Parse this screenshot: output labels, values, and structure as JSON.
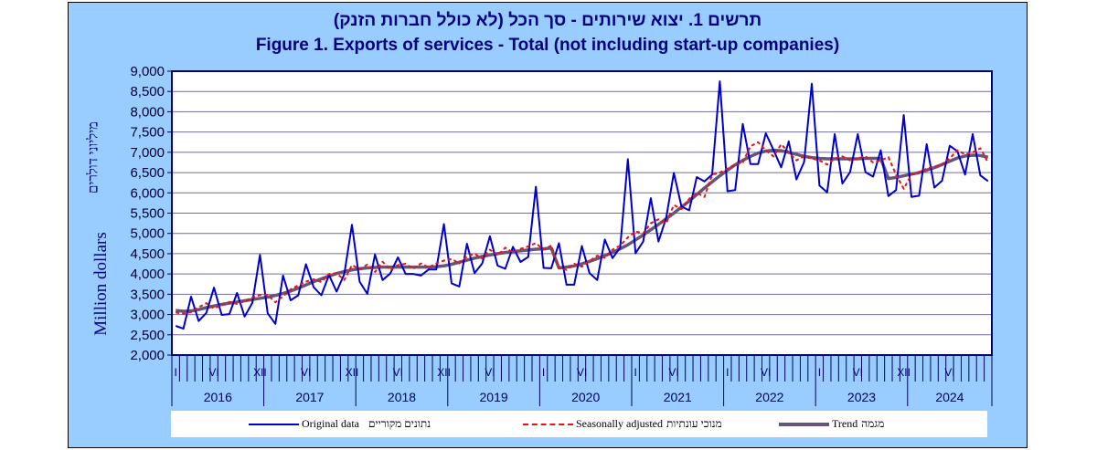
{
  "chart_data": {
    "type": "line",
    "title_he": "תרשים 1. יצוא שירותים - סך הכל (לא כולל חברות הזנק)",
    "title": "Figure 1. Exports of services - Total (not including start-up companies)",
    "ylabel_he": "מיליוני דולרים",
    "ylabel": "Million dollars",
    "ylim": [
      2000,
      9000
    ],
    "yticks": [
      "2,000",
      "2,500",
      "3,000",
      "3,500",
      "4,000",
      "4,500",
      "5,000",
      "5,500",
      "6,000",
      "6,500",
      "7,000",
      "7,500",
      "8,000",
      "8,500",
      "9,000"
    ],
    "grid": true,
    "x_start": "2016-01",
    "x_end": "2024-11",
    "years": [
      "2016",
      "2017",
      "2018",
      "2019",
      "2020",
      "2021",
      "2022",
      "2023",
      "2024"
    ],
    "month_labels": [
      {
        "index": 0,
        "label": "I"
      },
      {
        "index": 5,
        "label": "VI"
      },
      {
        "index": 11,
        "label": "XII"
      },
      {
        "index": 17,
        "label": "VI"
      },
      {
        "index": 23,
        "label": "XII"
      },
      {
        "index": 29,
        "label": "VI"
      },
      {
        "index": 35,
        "label": "XII"
      },
      {
        "index": 41,
        "label": "VI"
      },
      {
        "index": 48,
        "label": "I"
      },
      {
        "index": 53,
        "label": "VI"
      },
      {
        "index": 60,
        "label": "I"
      },
      {
        "index": 65,
        "label": "VI"
      },
      {
        "index": 72,
        "label": "I"
      },
      {
        "index": 77,
        "label": "VI"
      },
      {
        "index": 84,
        "label": "I"
      },
      {
        "index": 89,
        "label": "VI"
      },
      {
        "index": 95,
        "label": "XII"
      },
      {
        "index": 101,
        "label": "VI"
      }
    ],
    "legend_placement": "bottom",
    "series": [
      {
        "name": "Original data",
        "name_he": "נתונים מקוריים",
        "color": "#0000cc",
        "style": "solid",
        "values": [
          2720,
          2650,
          3440,
          2840,
          3040,
          3660,
          2990,
          3010,
          3530,
          2950,
          3285,
          4470,
          3030,
          2770,
          3960,
          3350,
          3475,
          4240,
          3675,
          3475,
          3975,
          3565,
          3995,
          5215,
          3810,
          3510,
          4480,
          3850,
          4010,
          4410,
          4000,
          4000,
          3960,
          4110,
          4110,
          5230,
          3770,
          3690,
          4745,
          4020,
          4260,
          4930,
          4205,
          4130,
          4670,
          4295,
          4420,
          6150,
          4150,
          4140,
          4760,
          3735,
          3735,
          4690,
          4020,
          3850,
          4850,
          4390,
          4650,
          6830,
          4510,
          4800,
          5870,
          4800,
          5380,
          6490,
          5660,
          5570,
          6390,
          6280,
          6450,
          8750,
          6040,
          6070,
          7700,
          6710,
          6710,
          7470,
          7060,
          6630,
          7270,
          6330,
          6760,
          8690,
          6180,
          6010,
          7450,
          6230,
          6510,
          7450,
          6510,
          6400,
          7050,
          5920,
          6070,
          7920,
          5900,
          5930,
          7200,
          6130,
          6300,
          7160,
          7025,
          6450,
          7450,
          6430,
          6290
        ]
      },
      {
        "name": "Seasonally adjusted",
        "name_he": "מנוכי עונתיות",
        "color": "#ee1111",
        "style": "dashed",
        "values": [
          3050,
          3020,
          3060,
          3180,
          3280,
          3150,
          3230,
          3310,
          3260,
          3330,
          3420,
          3480,
          3480,
          3300,
          3450,
          3620,
          3720,
          3810,
          3870,
          3800,
          4000,
          4020,
          3850,
          4220,
          4120,
          4230,
          4050,
          4300,
          4100,
          4220,
          4250,
          4130,
          4260,
          4160,
          4260,
          4330,
          4370,
          4260,
          4430,
          4500,
          4380,
          4600,
          4460,
          4650,
          4530,
          4620,
          4680,
          4760,
          4600,
          4700,
          4150,
          4100,
          4250,
          4180,
          4320,
          4450,
          4400,
          4600,
          4700,
          4900,
          5050,
          5000,
          5250,
          5350,
          5250,
          5700,
          5600,
          5850,
          6000,
          5900,
          6450,
          6500,
          6600,
          6700,
          6750,
          7150,
          7250,
          7050,
          6900,
          7200,
          7000,
          6800,
          6900,
          6850,
          6800,
          6700,
          6850,
          6900,
          6800,
          6850,
          6900,
          6750,
          6800,
          6880,
          6450,
          6100,
          6450,
          6500,
          6600,
          6650,
          6700,
          6850,
          7050,
          6950,
          7000,
          7100,
          6750
        ]
      },
      {
        "name": "Trend",
        "name_he": "מגמה",
        "color": "#665577",
        "style": "thick",
        "values": [
          3100,
          3080,
          3090,
          3120,
          3170,
          3210,
          3250,
          3280,
          3310,
          3340,
          3370,
          3400,
          3430,
          3470,
          3520,
          3580,
          3650,
          3730,
          3810,
          3880,
          3950,
          4010,
          4060,
          4100,
          4130,
          4150,
          4160,
          4170,
          4170,
          4170,
          4170,
          4170,
          4170,
          4170,
          4180,
          4200,
          4240,
          4290,
          4340,
          4390,
          4430,
          4470,
          4500,
          4530,
          4550,
          4570,
          4590,
          4610,
          4620,
          4640,
          4150,
          4170,
          4200,
          4250,
          4310,
          4380,
          4450,
          4530,
          4620,
          4720,
          4840,
          4960,
          5090,
          5220,
          5360,
          5500,
          5650,
          5800,
          5960,
          6120,
          6270,
          6420,
          6560,
          6690,
          6800,
          6900,
          6980,
          7030,
          7050,
          7040,
          7000,
          6950,
          6900,
          6870,
          6850,
          6840,
          6840,
          6840,
          6840,
          6840,
          6850,
          6850,
          6850,
          6350,
          6380,
          6420,
          6460,
          6500,
          6560,
          6620,
          6700,
          6780,
          6860,
          6910,
          6930,
          6920,
          6880
        ]
      }
    ]
  }
}
